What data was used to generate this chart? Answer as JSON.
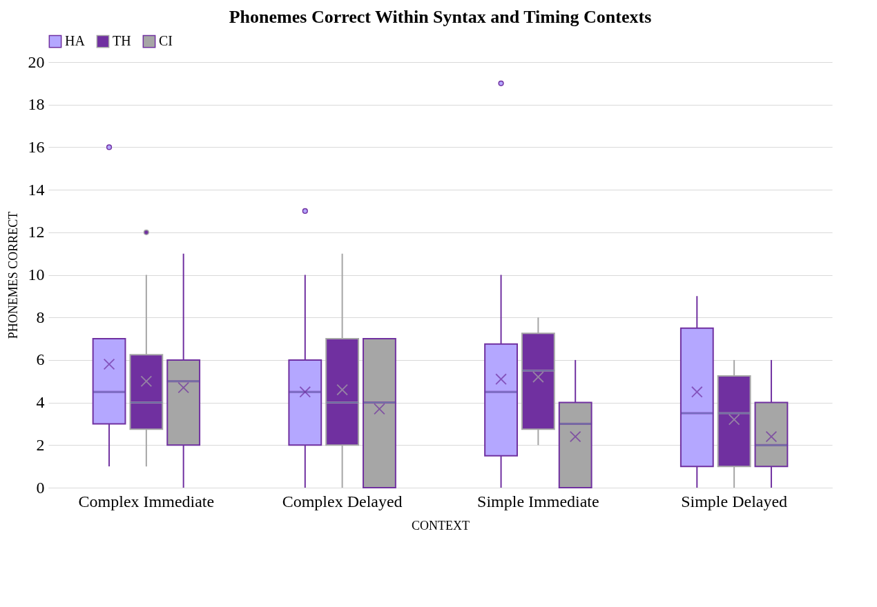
{
  "chart_data": {
    "type": "box",
    "title": "Phonemes Correct Within Syntax and Timing Contexts",
    "xlabel": "CONTEXT",
    "ylabel": "PHONEMES CORRECT",
    "categories": [
      "Complex Immediate",
      "Complex Delayed",
      "Simple Immediate",
      "Simple Delayed"
    ],
    "ylim": [
      0,
      20
    ],
    "yticks": [
      0,
      2,
      4,
      6,
      8,
      10,
      12,
      14,
      16,
      18,
      20
    ],
    "grid": "y",
    "legend": "top",
    "series": [
      {
        "name": "HA",
        "color": "#b4a7ff",
        "boxes": [
          {
            "low": 1,
            "q1": 3,
            "median": 4.5,
            "q3": 7,
            "high": 7,
            "mean": 5.8,
            "outliers": [
              16
            ]
          },
          {
            "low": 0,
            "q1": 2,
            "median": 4.5,
            "q3": 6,
            "high": 10,
            "mean": 4.5,
            "outliers": [
              13
            ]
          },
          {
            "low": 0,
            "q1": 1.5,
            "median": 4.5,
            "q3": 6.75,
            "high": 10,
            "mean": 5.1,
            "outliers": [
              19
            ]
          },
          {
            "low": 0,
            "q1": 1,
            "median": 3.5,
            "q3": 7.5,
            "high": 9,
            "mean": 4.5
          }
        ]
      },
      {
        "name": "TH",
        "color": "#7030a0",
        "boxes": [
          {
            "low": 1,
            "q1": 2.75,
            "median": 4,
            "q3": 6.25,
            "high": 10,
            "mean": 5,
            "outliers": [
              12
            ]
          },
          {
            "low": 0,
            "q1": 2,
            "median": 4,
            "q3": 7,
            "high": 11,
            "mean": 4.6
          },
          {
            "low": 2,
            "q1": 2.75,
            "median": 5.5,
            "q3": 7.25,
            "high": 8,
            "mean": 5.2
          },
          {
            "low": 0,
            "q1": 1,
            "median": 3.5,
            "q3": 5.25,
            "high": 6,
            "mean": 3.2
          }
        ]
      },
      {
        "name": "CI",
        "color": "#a6a6a6",
        "boxes": [
          {
            "low": 0,
            "q1": 2,
            "median": 5,
            "q3": 6,
            "high": 11,
            "mean": 4.7
          },
          {
            "low": 0,
            "q1": 0,
            "median": 4,
            "q3": 7,
            "high": 7,
            "mean": 3.7
          },
          {
            "low": 0,
            "q1": 0,
            "median": 3,
            "q3": 4,
            "high": 6,
            "mean": 2.4
          },
          {
            "low": 0,
            "q1": 1,
            "median": 2,
            "q3": 4,
            "high": 6,
            "mean": 2.4
          }
        ]
      }
    ]
  }
}
